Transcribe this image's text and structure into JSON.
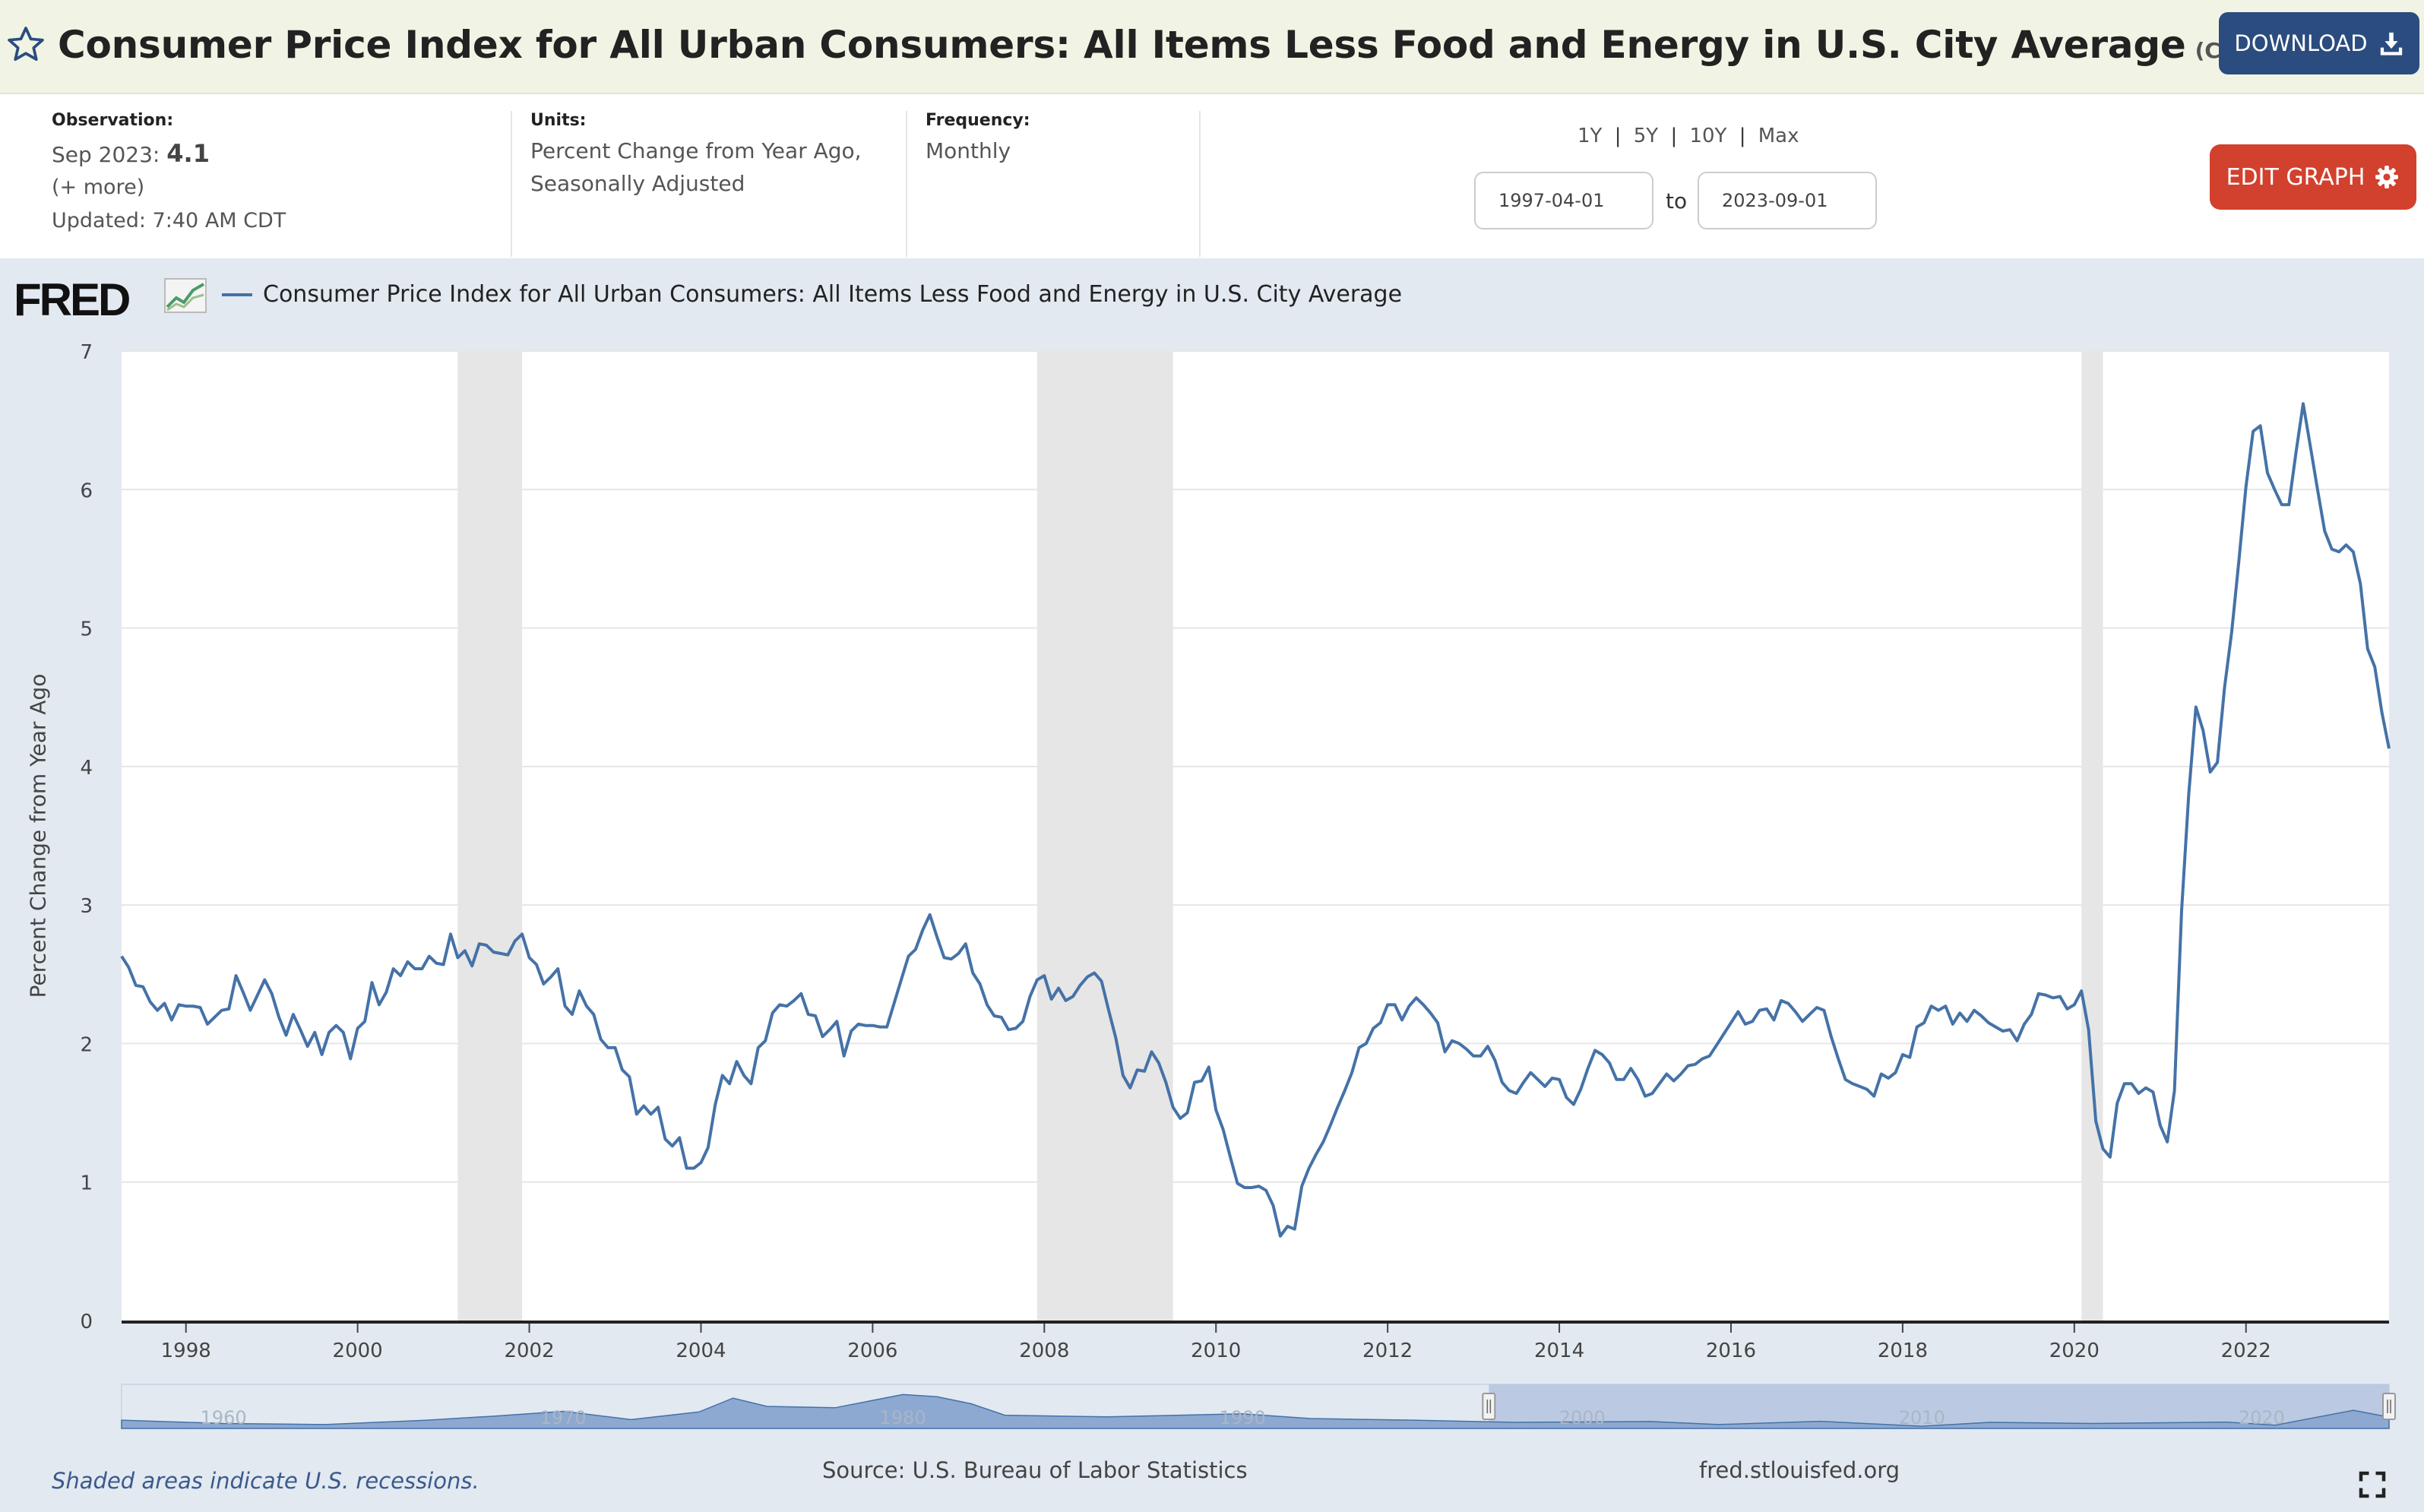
{
  "header": {
    "title": "Consumer Price Index for All Urban Consumers: All Items Less Food and Energy in U.S. City Average",
    "series_id": "(CPILFESL)",
    "download_label": "DOWNLOAD"
  },
  "info": {
    "observation_label": "Observation:",
    "observation_date": "Sep 2023:",
    "observation_value": "4.1",
    "more": "(+ more)",
    "updated": "Updated: 7:40 AM CDT",
    "units_label": "Units:",
    "units_line1": "Percent Change from Year Ago,",
    "units_line2": "Seasonally Adjusted",
    "frequency_label": "Frequency:",
    "frequency": "Monthly"
  },
  "controls": {
    "ranges": [
      "1Y",
      "5Y",
      "10Y",
      "Max"
    ],
    "separator": "|",
    "start_date": "1997-04-01",
    "to": "to",
    "end_date": "2023-09-01",
    "edit_graph": "EDIT GRAPH"
  },
  "logo": {
    "text": "FRED"
  },
  "footer": {
    "note": "Shaded areas indicate U.S. recessions.",
    "source": "Source: U.S. Bureau of Labor Statistics",
    "url": "fred.stlouisfed.org"
  },
  "colors": {
    "series": "#4572a7",
    "recession": "#e6e6e6",
    "header_bg": "#f1f4e4",
    "download_bg": "#2b4c7e",
    "edit_bg": "#d2412e",
    "graph_bg": "#e2e9f1"
  },
  "chart_data": {
    "type": "line",
    "title": "",
    "xlabel": "",
    "ylabel": "Percent Change from Year Ago",
    "ylim": [
      0,
      7
    ],
    "yticks": [
      0,
      1,
      2,
      3,
      4,
      5,
      6,
      7
    ],
    "xlim": [
      "1997-04",
      "2023-09"
    ],
    "xticks": [
      "1998",
      "2000",
      "2002",
      "2004",
      "2006",
      "2008",
      "2010",
      "2012",
      "2014",
      "2016",
      "2018",
      "2020",
      "2022"
    ],
    "grid": true,
    "legend_position": "top",
    "recessions": [
      [
        "2001-03",
        "2001-11"
      ],
      [
        "2007-12",
        "2009-06"
      ],
      [
        "2020-02",
        "2020-04"
      ]
    ],
    "navigator_ticks": [
      "1960",
      "1970",
      "1980",
      "1990",
      "2000",
      "2010",
      "2020"
    ],
    "series": [
      {
        "name": "Consumer Price Index for All Urban Consumers: All Items Less Food and Energy in U.S. City Average",
        "start": "1997-04",
        "frequency": "monthly",
        "values": [
          2.63,
          2.55,
          2.42,
          2.41,
          2.3,
          2.24,
          2.29,
          2.17,
          2.28,
          2.27,
          2.27,
          2.26,
          2.14,
          2.19,
          2.24,
          2.25,
          2.49,
          2.37,
          2.24,
          2.35,
          2.46,
          2.36,
          2.19,
          2.06,
          2.21,
          2.1,
          1.98,
          2.08,
          1.92,
          2.08,
          2.13,
          2.08,
          1.89,
          2.11,
          2.16,
          2.44,
          2.28,
          2.37,
          2.54,
          2.49,
          2.59,
          2.54,
          2.54,
          2.63,
          2.58,
          2.57,
          2.79,
          2.62,
          2.67,
          2.56,
          2.72,
          2.71,
          2.66,
          2.65,
          2.64,
          2.74,
          2.79,
          2.62,
          2.57,
          2.43,
          2.48,
          2.54,
          2.27,
          2.21,
          2.38,
          2.27,
          2.21,
          2.03,
          1.97,
          1.97,
          1.81,
          1.76,
          1.49,
          1.55,
          1.49,
          1.54,
          1.31,
          1.26,
          1.32,
          1.1,
          1.1,
          1.14,
          1.25,
          1.56,
          1.77,
          1.71,
          1.87,
          1.77,
          1.71,
          1.97,
          2.02,
          2.22,
          2.28,
          2.27,
          2.31,
          2.36,
          2.21,
          2.2,
          2.05,
          2.1,
          2.16,
          1.91,
          2.09,
          2.14,
          2.13,
          2.13,
          2.12,
          2.12,
          2.29,
          2.46,
          2.63,
          2.68,
          2.82,
          2.93,
          2.77,
          2.62,
          2.61,
          2.65,
          2.72,
          2.51,
          2.43,
          2.28,
          2.2,
          2.19,
          2.1,
          2.11,
          2.16,
          2.34,
          2.46,
          2.49,
          2.32,
          2.4,
          2.31,
          2.34,
          2.42,
          2.48,
          2.51,
          2.45,
          2.24,
          2.04,
          1.77,
          1.68,
          1.81,
          1.8,
          1.94,
          1.86,
          1.72,
          1.54,
          1.46,
          1.5,
          1.72,
          1.73,
          1.83,
          1.52,
          1.38,
          1.18,
          0.99,
          0.96,
          0.96,
          0.97,
          0.94,
          0.83,
          0.61,
          0.68,
          0.66,
          0.97,
          1.1,
          1.2,
          1.29,
          1.41,
          1.54,
          1.66,
          1.79,
          1.97,
          2.0,
          2.11,
          2.15,
          2.28,
          2.28,
          2.17,
          2.27,
          2.33,
          2.28,
          2.22,
          2.15,
          1.94,
          2.02,
          2.0,
          1.96,
          1.91,
          1.91,
          1.98,
          1.88,
          1.72,
          1.66,
          1.64,
          1.72,
          1.79,
          1.74,
          1.69,
          1.75,
          1.74,
          1.61,
          1.56,
          1.67,
          1.82,
          1.95,
          1.92,
          1.86,
          1.74,
          1.74,
          1.82,
          1.74,
          1.62,
          1.64,
          1.71,
          1.78,
          1.73,
          1.78,
          1.84,
          1.85,
          1.89,
          1.91,
          1.99,
          2.07,
          2.15,
          2.23,
          2.14,
          2.16,
          2.24,
          2.25,
          2.17,
          2.31,
          2.29,
          2.23,
          2.16,
          2.21,
          2.26,
          2.24,
          2.05,
          1.89,
          1.74,
          1.71,
          1.69,
          1.67,
          1.62,
          1.78,
          1.75,
          1.79,
          1.92,
          1.9,
          2.12,
          2.15,
          2.27,
          2.24,
          2.27,
          2.14,
          2.22,
          2.16,
          2.24,
          2.2,
          2.15,
          2.12,
          2.09,
          2.1,
          2.02,
          2.14,
          2.21,
          2.36,
          2.35,
          2.33,
          2.34,
          2.25,
          2.28,
          2.38,
          2.1,
          1.44,
          1.24,
          1.18,
          1.57,
          1.71,
          1.71,
          1.64,
          1.68,
          1.65,
          1.41,
          1.29,
          1.66,
          2.96,
          3.8,
          4.43,
          4.26,
          3.96,
          4.03,
          4.57,
          4.97,
          5.48,
          6.02,
          6.42,
          6.46,
          6.12,
          6.0,
          5.89,
          5.89,
          6.27,
          6.62,
          6.31,
          6.0,
          5.7,
          5.57,
          5.55,
          5.6,
          5.55,
          5.32,
          4.85,
          4.72,
          4.39,
          4.13
        ]
      }
    ]
  }
}
